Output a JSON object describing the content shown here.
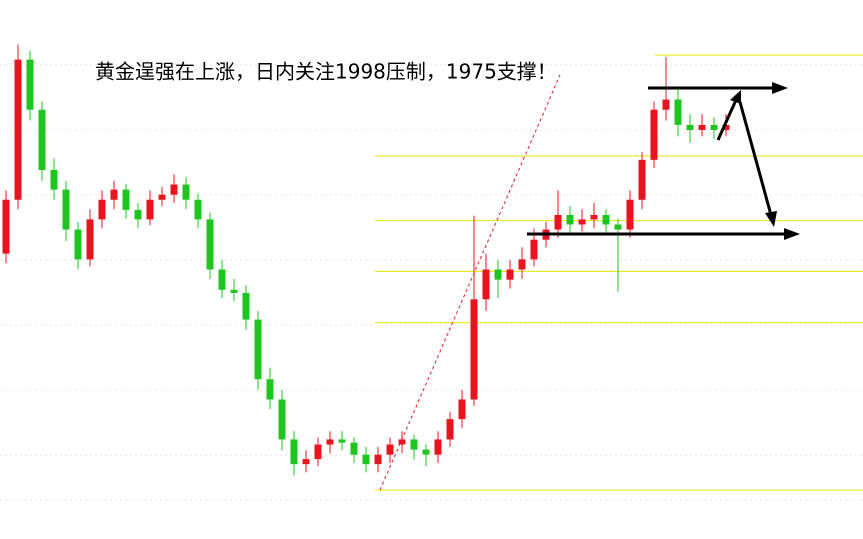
{
  "chart_data": {
    "type": "candlestick",
    "title": "黄金逞强在上涨，日内关注1998压制，1975支撑！",
    "ylim": [
      1927,
      2012
    ],
    "up_color": "#e8141e",
    "down_color": "#1fc51f",
    "level_color": "#e6e600",
    "levels": [
      2003.3,
      1987.4,
      1977.2,
      1969.2,
      1961.1,
      1934.7
    ],
    "ohlc": [
      [
        1972,
        1982,
        1970.5,
        1980.5
      ],
      [
        1980.5,
        2005,
        1979,
        2002.6
      ],
      [
        2002.6,
        2004,
        1993,
        1994.7
      ],
      [
        1994.7,
        1996,
        1983.5,
        1985.2
      ],
      [
        1985.2,
        1987,
        1980.5,
        1982.1
      ],
      [
        1982.1,
        1983.5,
        1974,
        1975.8
      ],
      [
        1975.8,
        1977,
        1969.5,
        1971.1
      ],
      [
        1971.1,
        1979,
        1970,
        1977.4
      ],
      [
        1977.4,
        1982,
        1976,
        1980.5
      ],
      [
        1980.5,
        1983.5,
        1979,
        1982.1
      ],
      [
        1982.1,
        1983,
        1977.5,
        1978.9
      ],
      [
        1978.9,
        1980,
        1976,
        1977.4
      ],
      [
        1977.4,
        1982,
        1976.5,
        1980.5
      ],
      [
        1980.5,
        1982.5,
        1979.5,
        1981.3
      ],
      [
        1981.3,
        1984.5,
        1980,
        1982.9
      ],
      [
        1982.9,
        1984,
        1979,
        1980.5
      ],
      [
        1980.5,
        1981.5,
        1976,
        1977.4
      ],
      [
        1977.4,
        1978.5,
        1968,
        1969.5
      ],
      [
        1969.5,
        1971,
        1965,
        1966.3
      ],
      [
        1966.3,
        1968,
        1964.5,
        1965.8
      ],
      [
        1965.8,
        1967,
        1960,
        1961.6
      ],
      [
        1961.6,
        1963,
        1950.5,
        1952.2
      ],
      [
        1952.2,
        1954,
        1947.5,
        1949.0
      ],
      [
        1949.0,
        1950.5,
        1941,
        1942.7
      ],
      [
        1942.7,
        1944,
        1937,
        1938.8
      ],
      [
        1938.8,
        1941,
        1937.5,
        1939.6
      ],
      [
        1939.6,
        1943,
        1938.5,
        1941.9
      ],
      [
        1941.9,
        1944,
        1940.5,
        1942.7
      ],
      [
        1942.7,
        1944,
        1941,
        1942.2
      ],
      [
        1942.2,
        1943,
        1939,
        1940.3
      ],
      [
        1940.3,
        1941.5,
        1937.5,
        1938.8
      ],
      [
        1938.8,
        1941.5,
        1937.5,
        1940.3
      ],
      [
        1940.3,
        1943,
        1939,
        1941.9
      ],
      [
        1941.9,
        1944,
        1940.5,
        1942.7
      ],
      [
        1942.7,
        1943.5,
        1939.5,
        1941.1
      ],
      [
        1941.1,
        1942,
        1938.5,
        1940.3
      ],
      [
        1940.3,
        1944,
        1939,
        1942.7
      ],
      [
        1942.7,
        1947,
        1941.5,
        1945.9
      ],
      [
        1945.9,
        1950.5,
        1944.5,
        1949.0
      ],
      [
        1949.0,
        1978,
        1948,
        1964.8
      ],
      [
        1964.8,
        1972,
        1963,
        1969.5
      ],
      [
        1969.5,
        1971,
        1965,
        1967.9
      ],
      [
        1967.9,
        1971,
        1966.5,
        1969.5
      ],
      [
        1969.5,
        1973,
        1968,
        1971.1
      ],
      [
        1971.1,
        1976,
        1970,
        1974.2
      ],
      [
        1974.2,
        1977,
        1973,
        1975.8
      ],
      [
        1975.8,
        1982,
        1974.5,
        1978.1
      ],
      [
        1978.1,
        1979.5,
        1975,
        1976.6
      ],
      [
        1976.6,
        1979,
        1975.5,
        1977.4
      ],
      [
        1977.4,
        1980,
        1976,
        1978.1
      ],
      [
        1978.1,
        1979,
        1975,
        1976.6
      ],
      [
        1976.6,
        1977.5,
        1966,
        1975.8
      ],
      [
        1975.8,
        1982,
        1974.5,
        1980.5
      ],
      [
        1980.5,
        1988,
        1979,
        1986.8
      ],
      [
        1986.8,
        1996,
        1985.5,
        1994.7
      ],
      [
        1994.7,
        2003,
        1993,
        1996.3
      ],
      [
        1996.3,
        1998,
        1990.5,
        1992.3
      ],
      [
        1992.3,
        1994,
        1989.5,
        1991.5
      ],
      [
        1991.5,
        1994,
        1990.5,
        1992.3
      ],
      [
        1992.3,
        1993.5,
        1990,
        1991.5
      ],
      [
        1991.5,
        1994,
        1990.5,
        1992.3
      ]
    ]
  }
}
